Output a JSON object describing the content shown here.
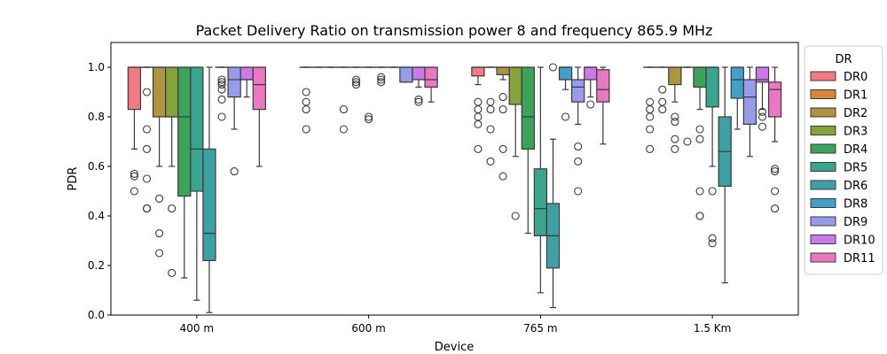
{
  "chart_data": {
    "type": "box",
    "title": "Packet Delivery Ratio on transmission power 8 and frequency 865.9 MHz",
    "xlabel": "Device",
    "ylabel": "PDR",
    "ylim": [
      0.0,
      1.1
    ],
    "yticks": [
      "0.0",
      "0.2",
      "0.4",
      "0.6",
      "0.8",
      "1.0"
    ],
    "categories": [
      "400 m",
      "600 m",
      "765 m",
      "1.5 Km"
    ],
    "legend": {
      "title": "DR",
      "placement": "outside-right"
    },
    "series": [
      {
        "name": "DR0",
        "color": "#f27a87",
        "boxes": [
          {
            "q1": 0.83,
            "median": 1.0,
            "q3": 1.0,
            "whisker_low": 0.67,
            "whisker_high": 1.0,
            "outliers": [
              0.57,
              0.56,
              0.5
            ]
          },
          {
            "q1": 1.0,
            "median": 1.0,
            "q3": 1.0,
            "whisker_low": 1.0,
            "whisker_high": 1.0,
            "outliers": [
              0.9,
              0.86,
              0.83,
              0.75
            ]
          },
          {
            "q1": 0.965,
            "median": 1.0,
            "q3": 1.0,
            "whisker_low": 0.93,
            "whisker_high": 1.0,
            "outliers": [
              0.86,
              0.83,
              0.8,
              0.77,
              0.67
            ]
          },
          {
            "q1": 1.0,
            "median": 1.0,
            "q3": 1.0,
            "whisker_low": 1.0,
            "whisker_high": 1.0,
            "outliers": [
              0.86,
              0.83,
              0.8,
              0.75,
              0.67
            ]
          }
        ]
      },
      {
        "name": "DR1",
        "color": "#d8853e",
        "boxes": [
          {
            "q1": 1.0,
            "median": 1.0,
            "q3": 1.0,
            "whisker_low": 1.0,
            "whisker_high": 1.0,
            "outliers": [
              0.9,
              0.75,
              0.67,
              0.55,
              0.43,
              0.43
            ]
          },
          {
            "q1": 1.0,
            "median": 1.0,
            "q3": 1.0,
            "whisker_low": 1.0,
            "whisker_high": 1.0,
            "outliers": []
          },
          {
            "q1": 1.0,
            "median": 1.0,
            "q3": 1.0,
            "whisker_low": 1.0,
            "whisker_high": 1.0,
            "outliers": [
              0.86,
              0.83,
              0.75,
              0.62
            ]
          },
          {
            "q1": 1.0,
            "median": 1.0,
            "q3": 1.0,
            "whisker_low": 1.0,
            "whisker_high": 1.0,
            "outliers": [
              0.86,
              0.83,
              0.91
            ]
          }
        ]
      },
      {
        "name": "DR2",
        "color": "#ae9340",
        "boxes": [
          {
            "q1": 0.8,
            "median": 1.0,
            "q3": 1.0,
            "whisker_low": 0.6,
            "whisker_high": 1.0,
            "outliers": [
              0.47,
              0.33,
              0.25
            ]
          },
          {
            "q1": 1.0,
            "median": 1.0,
            "q3": 1.0,
            "whisker_low": 1.0,
            "whisker_high": 1.0,
            "outliers": []
          },
          {
            "q1": 0.97,
            "median": 1.0,
            "q3": 1.0,
            "whisker_low": 0.95,
            "whisker_high": 1.0,
            "outliers": [
              0.88,
              0.83,
              0.67,
              0.56
            ]
          },
          {
            "q1": 0.93,
            "median": 1.0,
            "q3": 1.0,
            "whisker_low": 0.86,
            "whisker_high": 1.0,
            "outliers": [
              0.8,
              0.78,
              0.71,
              0.67
            ]
          }
        ]
      },
      {
        "name": "DR3",
        "color": "#85a33a",
        "boxes": [
          {
            "q1": 0.8,
            "median": 0.8,
            "q3": 1.0,
            "whisker_low": 0.6,
            "whisker_high": 1.0,
            "outliers": [
              0.43,
              0.17
            ]
          },
          {
            "q1": 1.0,
            "median": 1.0,
            "q3": 1.0,
            "whisker_low": 1.0,
            "whisker_high": 1.0,
            "outliers": [
              0.83,
              0.75
            ]
          },
          {
            "q1": 0.85,
            "median": 1.0,
            "q3": 1.0,
            "whisker_low": 0.64,
            "whisker_high": 1.0,
            "outliers": [
              0.4
            ]
          },
          {
            "q1": 1.0,
            "median": 1.0,
            "q3": 1.0,
            "whisker_low": 1.0,
            "whisker_high": 1.0,
            "outliers": [
              0.7
            ]
          }
        ]
      },
      {
        "name": "DR4",
        "color": "#3ca25c",
        "boxes": [
          {
            "q1": 0.48,
            "median": 0.8,
            "q3": 1.0,
            "whisker_low": 0.15,
            "whisker_high": 1.0,
            "outliers": []
          },
          {
            "q1": 1.0,
            "median": 1.0,
            "q3": 1.0,
            "whisker_low": 1.0,
            "whisker_high": 1.0,
            "outliers": [
              0.95,
              0.94,
              0.93
            ]
          },
          {
            "q1": 0.67,
            "median": 0.8,
            "q3": 1.0,
            "whisker_low": 0.33,
            "whisker_high": 1.0,
            "outliers": []
          },
          {
            "q1": 0.92,
            "median": 1.0,
            "q3": 1.0,
            "whisker_low": 0.83,
            "whisker_high": 1.0,
            "outliers": [
              0.75,
              0.71,
              0.5,
              0.4,
              0.4
            ]
          }
        ]
      },
      {
        "name": "DR5",
        "color": "#3ba48f",
        "boxes": [
          {
            "q1": 0.5,
            "median": 0.67,
            "q3": 1.0,
            "whisker_low": 0.06,
            "whisker_high": 1.0,
            "outliers": []
          },
          {
            "q1": 1.0,
            "median": 1.0,
            "q3": 1.0,
            "whisker_low": 1.0,
            "whisker_high": 1.0,
            "outliers": [
              0.8,
              0.79
            ]
          },
          {
            "q1": 0.32,
            "median": 0.43,
            "q3": 0.59,
            "whisker_low": 0.09,
            "whisker_high": 1.0,
            "outliers": []
          },
          {
            "q1": 0.84,
            "median": 1.0,
            "q3": 1.0,
            "whisker_low": 0.6,
            "whisker_high": 1.0,
            "outliers": [
              0.5,
              0.31,
              0.29
            ]
          }
        ]
      },
      {
        "name": "DR6",
        "color": "#3ea0a3",
        "boxes": [
          {
            "q1": 0.22,
            "median": 0.33,
            "q3": 0.67,
            "whisker_low": 0.01,
            "whisker_high": 1.0,
            "outliers": []
          },
          {
            "q1": 1.0,
            "median": 1.0,
            "q3": 1.0,
            "whisker_low": 1.0,
            "whisker_high": 1.0,
            "outliers": [
              0.96,
              0.95,
              0.94
            ]
          },
          {
            "q1": 0.19,
            "median": 0.32,
            "q3": 0.45,
            "whisker_low": 0.03,
            "whisker_high": 0.71,
            "outliers": [
              1.0
            ]
          },
          {
            "q1": 0.52,
            "median": 0.66,
            "q3": 0.8,
            "whisker_low": 0.13,
            "whisker_high": 1.0,
            "outliers": []
          }
        ]
      },
      {
        "name": "DR8",
        "color": "#42a0c8",
        "boxes": [
          {
            "q1": 1.0,
            "median": 1.0,
            "q3": 1.0,
            "whisker_low": 1.0,
            "whisker_high": 1.0,
            "outliers": [
              0.95,
              0.94,
              0.93,
              0.91,
              0.87,
              0.8
            ]
          },
          {
            "q1": 1.0,
            "median": 1.0,
            "q3": 1.0,
            "whisker_low": 1.0,
            "whisker_high": 1.0,
            "outliers": []
          },
          {
            "q1": 0.95,
            "median": 1.0,
            "q3": 1.0,
            "whisker_low": 0.91,
            "whisker_high": 1.0,
            "outliers": [
              0.8
            ]
          },
          {
            "q1": 0.875,
            "median": 0.95,
            "q3": 1.0,
            "whisker_low": 0.75,
            "whisker_high": 1.0,
            "outliers": []
          }
        ]
      },
      {
        "name": "DR9",
        "color": "#979cea",
        "boxes": [
          {
            "q1": 0.88,
            "median": 0.95,
            "q3": 1.0,
            "whisker_low": 0.75,
            "whisker_high": 1.0,
            "outliers": [
              0.58
            ]
          },
          {
            "q1": 0.94,
            "median": 1.0,
            "q3": 1.0,
            "whisker_low": 0.94,
            "whisker_high": 1.0,
            "outliers": []
          },
          {
            "q1": 0.86,
            "median": 0.92,
            "q3": 0.95,
            "whisker_low": 0.77,
            "whisker_high": 1.0,
            "outliers": [
              0.68,
              0.62,
              0.5
            ]
          },
          {
            "q1": 0.77,
            "median": 0.88,
            "q3": 0.95,
            "whisker_low": 0.64,
            "whisker_high": 1.0,
            "outliers": []
          }
        ]
      },
      {
        "name": "DR10",
        "color": "#c97ae8",
        "boxes": [
          {
            "q1": 0.95,
            "median": 0.95,
            "q3": 1.0,
            "whisker_low": 0.88,
            "whisker_high": 1.0,
            "outliers": []
          },
          {
            "q1": 0.95,
            "median": 1.0,
            "q3": 1.0,
            "whisker_low": 0.92,
            "whisker_high": 1.0,
            "outliers": [
              0.87,
              0.86
            ]
          },
          {
            "q1": 0.95,
            "median": 1.0,
            "q3": 1.0,
            "whisker_low": 0.88,
            "whisker_high": 1.0,
            "outliers": [
              0.85
            ]
          },
          {
            "q1": 0.94,
            "median": 0.95,
            "q3": 1.0,
            "whisker_low": 0.83,
            "whisker_high": 1.0,
            "outliers": [
              0.82,
              0.8,
              0.76
            ]
          }
        ]
      },
      {
        "name": "DR11",
        "color": "#e878c2",
        "boxes": [
          {
            "q1": 0.83,
            "median": 0.93,
            "q3": 1.0,
            "whisker_low": 0.6,
            "whisker_high": 1.0,
            "outliers": []
          },
          {
            "q1": 0.92,
            "median": 0.95,
            "q3": 1.0,
            "whisker_low": 0.86,
            "whisker_high": 1.0,
            "outliers": []
          },
          {
            "q1": 0.86,
            "median": 0.91,
            "q3": 0.99,
            "whisker_low": 0.69,
            "whisker_high": 1.0,
            "outliers": []
          },
          {
            "q1": 0.8,
            "median": 0.91,
            "q3": 0.94,
            "whisker_low": 0.7,
            "whisker_high": 1.0,
            "outliers": [
              0.59,
              0.58,
              0.5,
              0.43
            ]
          }
        ]
      }
    ]
  }
}
